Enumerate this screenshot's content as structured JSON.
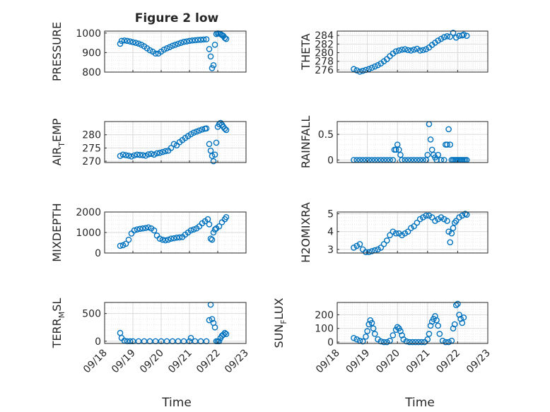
{
  "figure_title": "Figure 2 low",
  "colors": {
    "marker": "#0072BD",
    "axes": "#262626",
    "grid": "#d9d9d9",
    "minor_grid": "#e8e8e8"
  },
  "x_axis": {
    "label": "Time",
    "ticks": [
      0,
      1,
      2,
      3,
      4,
      5
    ],
    "tick_labels": [
      "09/18",
      "09/19",
      "09/20",
      "09/21",
      "09/22",
      "09/23"
    ],
    "range": [
      0,
      5
    ]
  },
  "chart_data": [
    {
      "type": "scatter",
      "ylabel": "PRESSURE",
      "title": "Figure 2 low",
      "ylim": [
        800,
        1010
      ],
      "yticks": [
        800,
        900,
        1000
      ],
      "yticklabels": [
        "800",
        "900",
        "1000"
      ],
      "x": [
        0.55,
        0.6,
        0.7,
        0.8,
        0.9,
        1.0,
        1.1,
        1.2,
        1.3,
        1.4,
        1.5,
        1.6,
        1.7,
        1.8,
        1.9,
        2.0,
        2.1,
        2.2,
        2.3,
        2.4,
        2.5,
        2.6,
        2.7,
        2.8,
        2.9,
        3.0,
        3.1,
        3.2,
        3.3,
        3.4,
        3.5,
        3.6,
        3.7,
        3.75,
        3.8,
        3.85,
        3.9,
        3.95,
        4.0,
        4.05,
        4.1,
        4.15,
        4.2,
        4.25,
        4.3
      ],
      "y": [
        945,
        960,
        962,
        960,
        957,
        953,
        950,
        946,
        940,
        932,
        922,
        912,
        905,
        895,
        895,
        905,
        915,
        922,
        928,
        935,
        940,
        945,
        950,
        955,
        957,
        960,
        962,
        963,
        965,
        966,
        967,
        968,
        918,
        880,
        820,
        835,
        940,
        995,
        998,
        997,
        995,
        990,
        985,
        975,
        970
      ]
    },
    {
      "type": "scatter",
      "ylabel": "THETA",
      "ylim": [
        275.5,
        285
      ],
      "yticks": [
        276,
        278,
        280,
        282,
        284
      ],
      "yticklabels": [
        "276",
        "278",
        "280",
        "282",
        "284"
      ],
      "x": [
        0.55,
        0.65,
        0.75,
        0.85,
        0.95,
        1.05,
        1.15,
        1.25,
        1.35,
        1.45,
        1.55,
        1.65,
        1.75,
        1.85,
        1.95,
        2.05,
        2.15,
        2.25,
        2.35,
        2.45,
        2.55,
        2.65,
        2.75,
        2.85,
        2.95,
        3.05,
        3.15,
        3.25,
        3.35,
        3.45,
        3.55,
        3.65,
        3.75,
        3.85,
        3.95,
        4.05,
        4.15,
        4.2,
        4.3
      ],
      "y": [
        276.2,
        275.9,
        275.6,
        275.8,
        276.0,
        276.2,
        276.5,
        276.8,
        277.1,
        277.5,
        278.0,
        278.5,
        279.2,
        279.8,
        280.3,
        280.5,
        280.7,
        280.8,
        280.6,
        280.5,
        280.7,
        280.9,
        280.5,
        280.6,
        280.8,
        281.2,
        281.8,
        282.3,
        282.8,
        283.2,
        283.6,
        283.8,
        283.7,
        284.6,
        283.5,
        283.9,
        284.0,
        284.2,
        283.9
      ]
    },
    {
      "type": "scatter",
      "ylabel": "AIR_T EMP",
      "ylim": [
        269.5,
        285
      ],
      "yticks": [
        270,
        275,
        280
      ],
      "yticklabels": [
        "270",
        "275",
        "280"
      ],
      "x": [
        0.55,
        0.65,
        0.75,
        0.85,
        0.95,
        1.05,
        1.15,
        1.25,
        1.35,
        1.45,
        1.55,
        1.65,
        1.75,
        1.85,
        1.95,
        2.05,
        2.15,
        2.25,
        2.35,
        2.45,
        2.55,
        2.65,
        2.75,
        2.85,
        2.95,
        3.05,
        3.15,
        3.25,
        3.35,
        3.45,
        3.55,
        3.6,
        3.7,
        3.75,
        3.8,
        3.85,
        3.9,
        3.95,
        4.0,
        4.05,
        4.1,
        4.15,
        4.2,
        4.25,
        4.3
      ],
      "y": [
        272,
        272.5,
        272.3,
        272.1,
        271.8,
        272.2,
        272.5,
        272.4,
        272.3,
        272.1,
        272.6,
        272.8,
        272.5,
        273.0,
        273.2,
        273.5,
        273.8,
        274.0,
        275.0,
        276.5,
        276.0,
        277.2,
        278.0,
        278.8,
        279.5,
        280.2,
        280.8,
        281.2,
        281.6,
        282.0,
        282.3,
        282.4,
        276.5,
        274.0,
        272.0,
        270.0,
        272.5,
        277.0,
        283.0,
        284.0,
        284.5,
        283.8,
        283.0,
        282.3,
        281.8
      ]
    },
    {
      "type": "scatter",
      "ylabel": "RAINFALL",
      "ylim": [
        -0.05,
        0.75
      ],
      "yticks": [
        0,
        0.5
      ],
      "yticklabels": [
        "0",
        "0.5"
      ],
      "x": [
        0.55,
        0.65,
        0.75,
        0.85,
        0.95,
        1.05,
        1.15,
        1.25,
        1.35,
        1.45,
        1.55,
        1.65,
        1.75,
        1.85,
        1.9,
        1.95,
        2.0,
        2.05,
        2.1,
        2.15,
        2.25,
        2.35,
        2.45,
        2.55,
        2.65,
        2.75,
        2.85,
        2.95,
        3.0,
        3.05,
        3.1,
        3.15,
        3.2,
        3.25,
        3.3,
        3.35,
        3.45,
        3.55,
        3.6,
        3.65,
        3.7,
        3.75,
        3.8,
        3.85,
        3.9,
        3.95,
        4.0,
        4.05,
        4.1,
        4.15,
        4.2,
        4.25,
        4.3
      ],
      "y": [
        0,
        0,
        0,
        0,
        0,
        0,
        0,
        0,
        0,
        0,
        0,
        0,
        0,
        0,
        0.2,
        0.2,
        0.3,
        0.2,
        0.1,
        0,
        0,
        0,
        0,
        0,
        0,
        0,
        0,
        0,
        0.1,
        0.7,
        0.4,
        0.2,
        0.1,
        0.05,
        0,
        0.1,
        0,
        0,
        0.3,
        0.3,
        0.6,
        0.3,
        0,
        0,
        0,
        0,
        0,
        0,
        0,
        0,
        0,
        0,
        0
      ]
    },
    {
      "type": "scatter",
      "ylabel": "MIXDEPTH",
      "ylim": [
        0,
        2000
      ],
      "yticks": [
        0,
        1000,
        2000
      ],
      "yticklabels": [
        "0",
        "1000",
        "2000"
      ],
      "x": [
        0.55,
        0.65,
        0.75,
        0.85,
        0.95,
        1.05,
        1.15,
        1.25,
        1.35,
        1.45,
        1.55,
        1.65,
        1.75,
        1.85,
        1.95,
        2.05,
        2.15,
        2.25,
        2.35,
        2.45,
        2.55,
        2.65,
        2.75,
        2.85,
        2.95,
        3.05,
        3.15,
        3.25,
        3.35,
        3.45,
        3.55,
        3.65,
        3.7,
        3.75,
        3.8,
        3.85,
        3.9,
        3.95,
        4.05,
        4.15,
        4.25,
        4.3
      ],
      "y": [
        350,
        380,
        450,
        650,
        950,
        1100,
        1150,
        1180,
        1200,
        1220,
        1250,
        1200,
        1100,
        850,
        700,
        650,
        620,
        650,
        700,
        720,
        750,
        760,
        780,
        900,
        1000,
        1100,
        1150,
        1200,
        1300,
        1450,
        1550,
        1650,
        1400,
        700,
        650,
        1000,
        1150,
        1200,
        1300,
        1500,
        1650,
        1750
      ]
    },
    {
      "type": "scatter",
      "ylabel": "H2OMIXRA",
      "ylim": [
        2.8,
        5.1
      ],
      "yticks": [
        3,
        4,
        5
      ],
      "yticklabels": [
        "3",
        "4",
        "5"
      ],
      "x": [
        0.55,
        0.65,
        0.75,
        0.85,
        0.95,
        1.05,
        1.15,
        1.25,
        1.35,
        1.45,
        1.55,
        1.65,
        1.75,
        1.85,
        1.95,
        2.05,
        2.15,
        2.25,
        2.35,
        2.45,
        2.55,
        2.65,
        2.75,
        2.85,
        2.95,
        3.05,
        3.15,
        3.25,
        3.35,
        3.45,
        3.55,
        3.65,
        3.7,
        3.75,
        3.8,
        3.85,
        3.9,
        3.95,
        4.05,
        4.15,
        4.25,
        4.3
      ],
      "y": [
        3.1,
        3.2,
        3.3,
        3.0,
        2.85,
        2.85,
        2.9,
        2.95,
        3.0,
        3.1,
        3.3,
        3.5,
        3.8,
        4.0,
        3.9,
        3.9,
        3.8,
        3.9,
        4.0,
        4.2,
        4.3,
        4.5,
        4.7,
        4.8,
        4.9,
        4.9,
        4.8,
        4.6,
        4.7,
        4.8,
        4.7,
        4.6,
        4.0,
        3.4,
        3.9,
        4.2,
        4.5,
        4.6,
        4.8,
        4.9,
        5.0,
        4.95
      ]
    },
    {
      "type": "scatter",
      "ylabel": "TERR_M SL",
      "ylim": [
        -40,
        700
      ],
      "yticks": [
        0,
        500
      ],
      "yticklabels": [
        "0",
        "500"
      ],
      "x": [
        0.55,
        0.6,
        0.7,
        0.8,
        0.9,
        1.0,
        1.2,
        1.4,
        1.6,
        1.8,
        2.0,
        2.2,
        2.4,
        2.6,
        2.8,
        3.0,
        3.05,
        3.2,
        3.4,
        3.6,
        3.7,
        3.75,
        3.8,
        3.85,
        3.9,
        3.95,
        4.0,
        4.05,
        4.1,
        4.15,
        4.2,
        4.25,
        4.3
      ],
      "y": [
        150,
        60,
        10,
        0,
        0,
        0,
        0,
        0,
        0,
        0,
        0,
        0,
        0,
        0,
        0,
        0,
        60,
        0,
        0,
        0,
        380,
        660,
        400,
        330,
        250,
        0,
        0,
        0,
        60,
        100,
        120,
        150,
        130
      ]
    },
    {
      "type": "scatter",
      "ylabel": "SUN_F LUX",
      "ylim": [
        -10,
        290
      ],
      "yticks": [
        0,
        100,
        200
      ],
      "yticklabels": [
        "0",
        "100",
        "200"
      ],
      "x": [
        0.55,
        0.65,
        0.75,
        0.85,
        0.95,
        1.0,
        1.05,
        1.1,
        1.15,
        1.2,
        1.25,
        1.35,
        1.45,
        1.55,
        1.65,
        1.75,
        1.85,
        1.95,
        2.0,
        2.05,
        2.1,
        2.15,
        2.2,
        2.3,
        2.4,
        2.5,
        2.6,
        2.7,
        2.8,
        2.9,
        3.0,
        3.05,
        3.1,
        3.15,
        3.2,
        3.25,
        3.3,
        3.35,
        3.4,
        3.5,
        3.6,
        3.7,
        3.8,
        3.85,
        3.9,
        3.95,
        4.0,
        4.05,
        4.1,
        4.15,
        4.2
      ],
      "y": [
        30,
        20,
        10,
        5,
        40,
        80,
        130,
        160,
        140,
        100,
        60,
        20,
        5,
        0,
        0,
        10,
        50,
        90,
        110,
        100,
        80,
        50,
        20,
        5,
        0,
        0,
        0,
        0,
        0,
        0,
        20,
        60,
        120,
        150,
        170,
        190,
        160,
        120,
        60,
        10,
        0,
        0,
        10,
        100,
        130,
        270,
        280,
        200,
        170,
        140,
        180
      ]
    }
  ]
}
